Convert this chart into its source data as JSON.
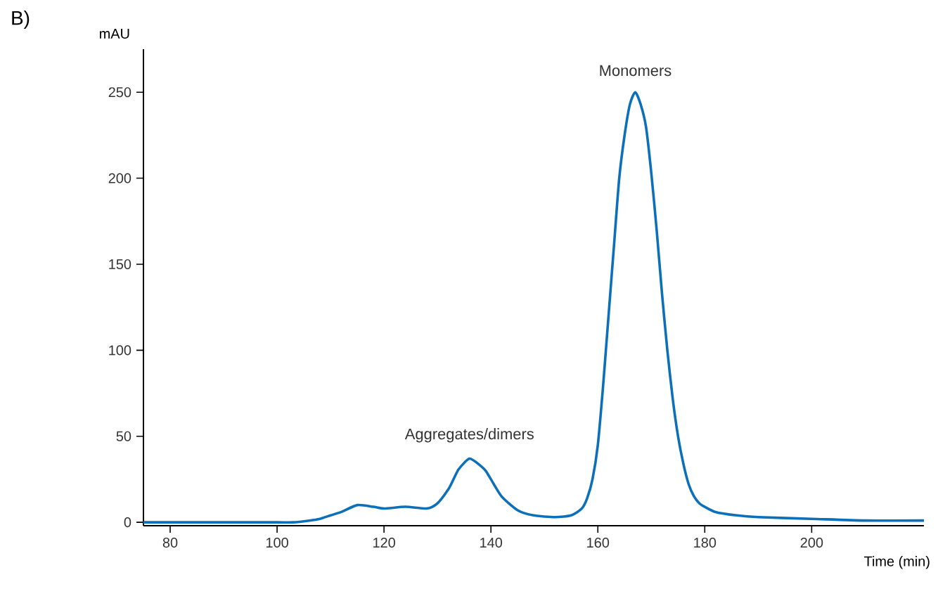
{
  "chart_data": {
    "type": "line",
    "title": "B)",
    "xlabel": "Time (min)",
    "ylabel": "mAU",
    "xlim": [
      75,
      221
    ],
    "ylim": [
      -2,
      275
    ],
    "xticks": [
      80,
      100,
      120,
      140,
      160,
      180,
      200
    ],
    "yticks": [
      0,
      50,
      100,
      150,
      200,
      250
    ],
    "grid": false,
    "marker": "none",
    "line_style": "solid",
    "annotations": [
      {
        "text": "Aggregates/dimers",
        "x": 136,
        "y": 37
      },
      {
        "text": "Monomers",
        "x": 167,
        "y": 250
      }
    ],
    "series": [
      {
        "color": "#0b6fba",
        "x": [
          75,
          90,
          100,
          103,
          106,
          108,
          110,
          112,
          115,
          118,
          120,
          124,
          128,
          130,
          132,
          133,
          134,
          136,
          138,
          139,
          140,
          142,
          145,
          148,
          152,
          155,
          157,
          158,
          159,
          160,
          161,
          162,
          163,
          164,
          165,
          166,
          167,
          168,
          169,
          170,
          171,
          172,
          173,
          174,
          175,
          176,
          177,
          178,
          179,
          180,
          182,
          186,
          190,
          200,
          210,
          221
        ],
        "values": [
          0,
          0,
          0,
          0,
          1,
          2,
          4,
          6,
          10,
          9,
          8,
          9,
          8,
          11,
          19,
          25,
          31,
          37,
          33,
          30,
          25,
          15,
          7,
          4,
          3,
          4,
          8,
          14,
          25,
          45,
          80,
          120,
          160,
          200,
          225,
          243,
          250,
          243,
          230,
          203,
          170,
          133,
          100,
          72,
          50,
          34,
          22,
          15,
          11,
          9,
          6,
          4,
          3,
          2,
          1,
          1
        ]
      }
    ]
  }
}
